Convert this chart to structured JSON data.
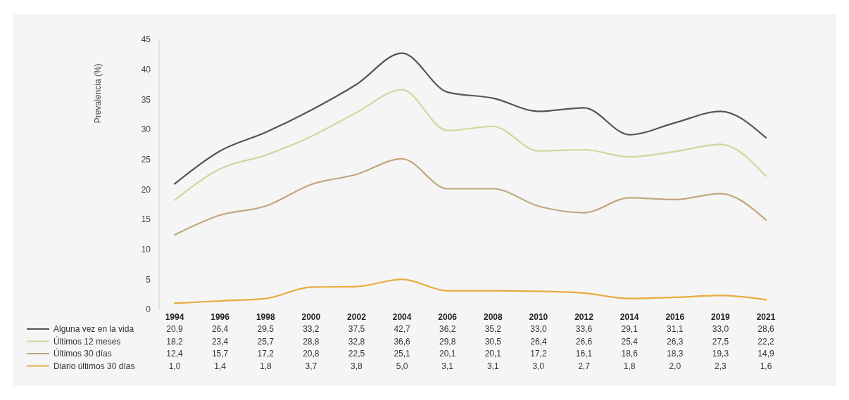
{
  "chart_data": {
    "type": "line",
    "ylabel": "Prevalencia (%)",
    "categories": [
      "1994",
      "1996",
      "1998",
      "2000",
      "2002",
      "2004",
      "2006",
      "2008",
      "2010",
      "2012",
      "2014",
      "2016",
      "2019",
      "2021"
    ],
    "ylim": [
      0,
      45
    ],
    "yticks": [
      0,
      5,
      10,
      15,
      20,
      25,
      30,
      35,
      40,
      45
    ],
    "grid": false,
    "legend": "bottom",
    "marker": "none",
    "line_style": "solid",
    "series": [
      {
        "name": "Alguna vez en la vida",
        "color": "#4f5a4c",
        "values": [
          20.9,
          26.4,
          29.5,
          33.2,
          37.5,
          42.7,
          36.2,
          35.2,
          33.0,
          33.6,
          29.1,
          31.1,
          33.0,
          28.6
        ],
        "value_labels": [
          "20,9",
          "26,4",
          "29,5",
          "33,2",
          "37,5",
          "42,7",
          "36,2",
          "35,2",
          "33,0",
          "33,6",
          "29,1",
          "31,1",
          "33,0",
          "28,6"
        ]
      },
      {
        "name": "Últimos 12 meses",
        "color": "#cbd99c",
        "values": [
          18.2,
          23.4,
          25.7,
          28.8,
          32.8,
          36.6,
          29.8,
          30.5,
          26.4,
          26.6,
          25.4,
          26.3,
          27.5,
          22.2
        ],
        "value_labels": [
          "18,2",
          "23,4",
          "25,7",
          "28,8",
          "32,8",
          "36,6",
          "29,8",
          "30,5",
          "26,4",
          "26,6",
          "25,4",
          "26,3",
          "27,5",
          "22,2"
        ]
      },
      {
        "name": "Últimos 30 días",
        "color": "#c2a680",
        "values": [
          12.4,
          15.7,
          17.2,
          20.8,
          22.5,
          25.1,
          20.1,
          20.1,
          17.2,
          16.1,
          18.6,
          18.3,
          19.3,
          14.9
        ],
        "value_labels": [
          "12,4",
          "15,7",
          "17,2",
          "20,8",
          "22,5",
          "25,1",
          "20,1",
          "20,1",
          "17,2",
          "16,1",
          "18,6",
          "18,3",
          "19,3",
          "14,9"
        ]
      },
      {
        "name": "Diario últimos 30 días",
        "color": "#e9ab3e",
        "values": [
          1.0,
          1.4,
          1.8,
          3.7,
          3.8,
          5.0,
          3.1,
          3.1,
          3.0,
          2.7,
          1.8,
          2.0,
          2.3,
          1.6
        ],
        "value_labels": [
          "1,0",
          "1,4",
          "1,8",
          "3,7",
          "3,8",
          "5,0",
          "3,1",
          "3,1",
          "3,0",
          "2,7",
          "1,8",
          "2,0",
          "2,3",
          "1,6"
        ]
      }
    ]
  }
}
